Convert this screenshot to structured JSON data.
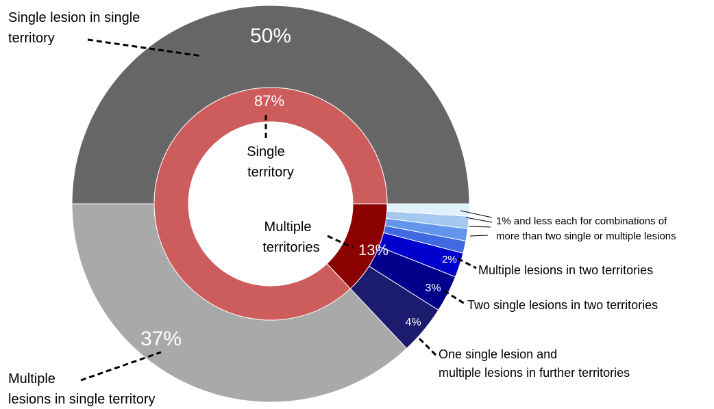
{
  "chart_data": {
    "type": "pie",
    "outer": {
      "values": [
        50,
        37,
        4,
        3,
        2,
        1,
        1,
        1,
        1
      ],
      "value_labels": [
        "50%",
        "37%",
        "4%",
        "3%",
        "2%",
        null,
        null,
        null,
        null
      ],
      "labels": [
        [
          "Single lesion in single",
          "territory"
        ],
        [
          "Multiple",
          "lesions in single territory"
        ],
        [
          "One single lesion and",
          "multiple lesions in further territories"
        ],
        [
          "Two single lesions in two territories"
        ],
        [
          "Multiple lesions in two territories"
        ],
        null,
        null,
        null,
        null
      ],
      "colors": [
        "#666666",
        "#a9a9a9",
        "#1c1c6e",
        "#00008b",
        "#0000cd",
        "#4169e1",
        "#6495ed",
        "#a4c8f0",
        "#dff0fa"
      ]
    },
    "inner": {
      "values": [
        87,
        13
      ],
      "value_labels": [
        "87%",
        "13%"
      ],
      "labels": [
        [
          "Single",
          "territory"
        ],
        [
          "Multiple",
          "territories"
        ]
      ],
      "colors": [
        "#cd5c5c",
        "#8b0000"
      ]
    },
    "annotation": [
      "1% and less each for combinations of",
      "more than two single or multiple lesions"
    ]
  }
}
